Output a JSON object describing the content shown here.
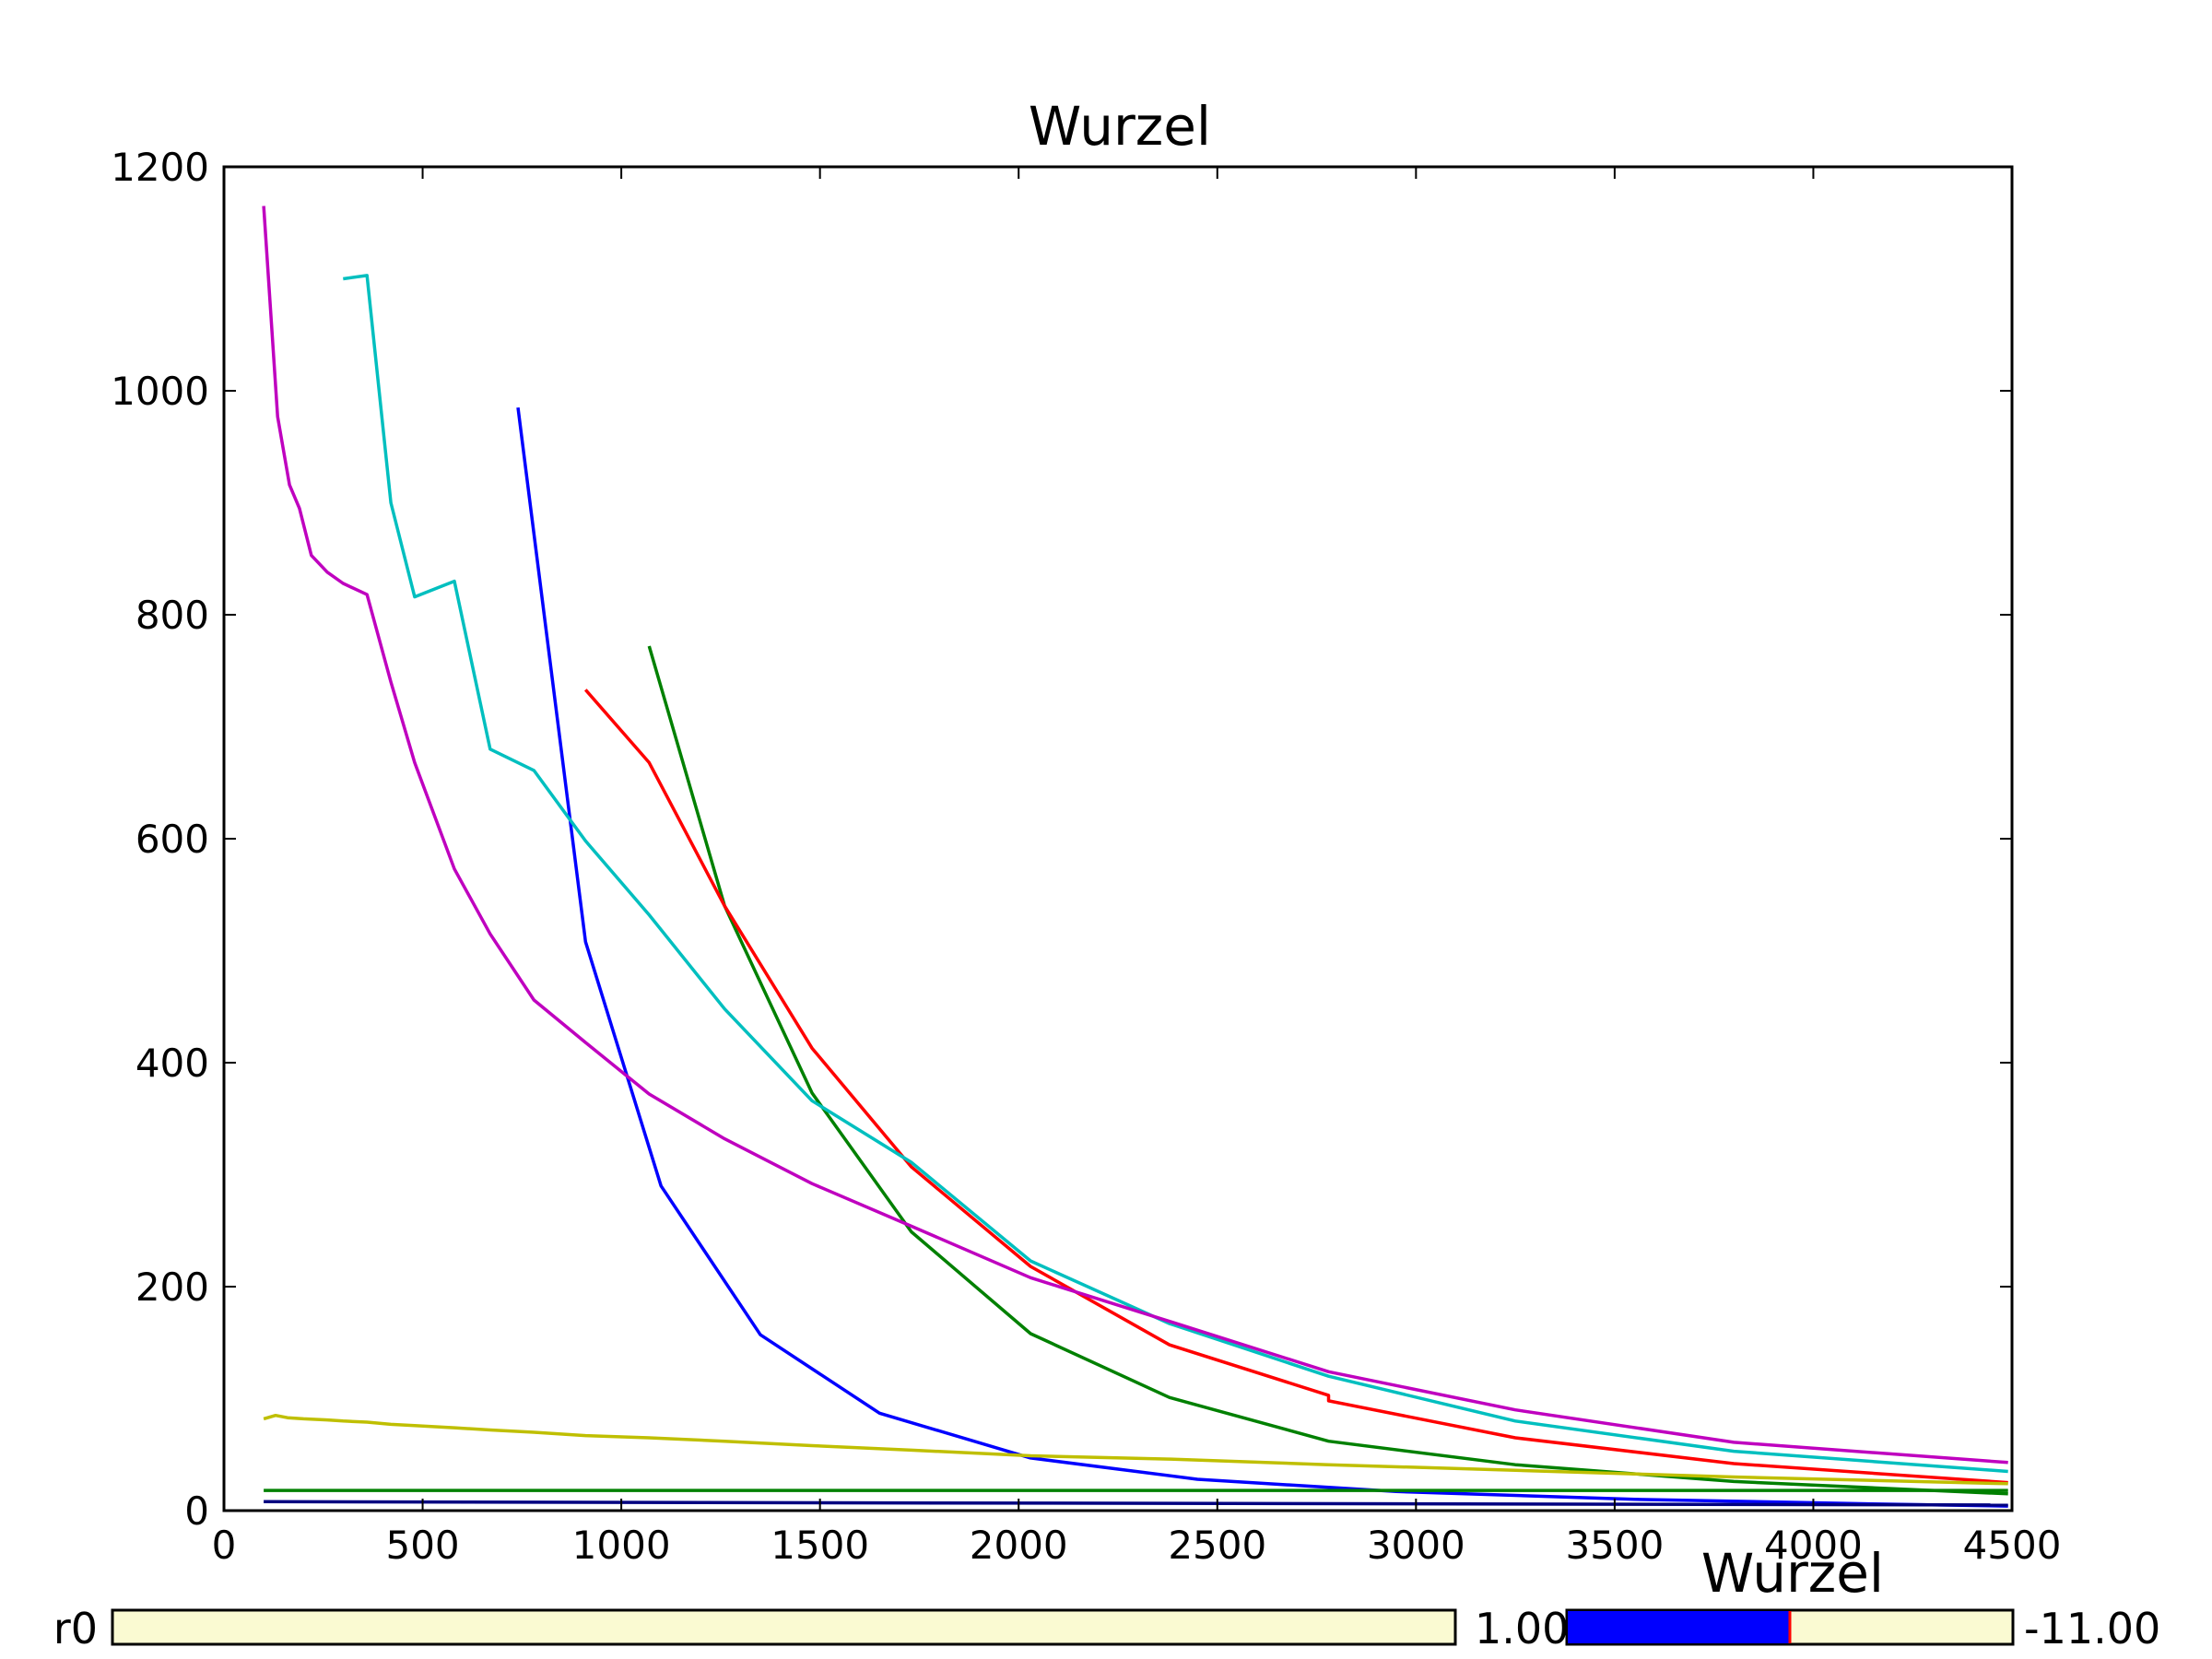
{
  "colors": {
    "blue": "#0000ff",
    "green": "#008000",
    "red": "#ff0000",
    "cyan": "#00bfbf",
    "magenta": "#bf00bf",
    "olive": "#bfbf00",
    "navy": "#000080",
    "slider_track": "#fafad2",
    "slider_fill": "#0000ff",
    "slider_marker": "#ff0000"
  },
  "chart_data": {
    "type": "line",
    "title": "Wurzel",
    "xlabel": "",
    "ylabel": "",
    "xlim": [
      0,
      4500
    ],
    "ylim": [
      0,
      1200
    ],
    "xticks": [
      "0",
      "500",
      "1000",
      "1500",
      "2000",
      "2500",
      "3000",
      "3500",
      "4000",
      "4500"
    ],
    "yticks": [
      "0",
      "200",
      "400",
      "600",
      "800",
      "1000",
      "1200"
    ],
    "xtick_values": [
      0,
      500,
      1000,
      1500,
      2000,
      2500,
      3000,
      3500,
      4000,
      4500
    ],
    "ytick_values": [
      0,
      200,
      400,
      600,
      800,
      1000,
      1200
    ],
    "grid": false,
    "series": [
      {
        "color": "blue",
        "x": [
          740,
          910,
          1100,
          1350,
          1650,
          2030,
          2450,
          2950,
          3550,
          4150,
          4490
        ],
        "y": [
          985,
          508,
          290,
          157,
          87,
          47,
          28,
          17,
          10,
          6,
          4
        ]
      },
      {
        "color": "green",
        "x": [
          1070,
          1260,
          1480,
          1730,
          2030,
          2380,
          2780,
          3250,
          3800,
          4490
        ],
        "y": [
          772,
          540,
          373,
          249,
          158,
          101,
          62,
          41,
          26,
          15
        ]
      },
      {
        "color": "red",
        "x": [
          910,
          1070,
          1260,
          1480,
          1730,
          2030,
          2380,
          2780,
          2780,
          3250,
          3800,
          4490
        ],
        "y": [
          733,
          668,
          540,
          413,
          307,
          218,
          148,
          103,
          98,
          65,
          42,
          25
        ]
      },
      {
        "color": "cyan",
        "x": [
          300,
          360,
          420,
          480,
          580,
          670,
          780,
          910,
          1070,
          1260,
          1480,
          1730,
          2030,
          2380,
          2780,
          3250,
          3800,
          4490
        ],
        "y": [
          1100,
          1103,
          900,
          816,
          830,
          680,
          661,
          598,
          532,
          448,
          366,
          311,
          223,
          167,
          120,
          80,
          53,
          35
        ]
      },
      {
        "color": "magenta",
        "x": [
          100,
          135,
          165,
          190,
          220,
          260,
          300,
          360,
          420,
          480,
          580,
          670,
          780,
          910,
          1070,
          1260,
          1480,
          1730,
          2030,
          2380,
          2780,
          3250,
          3800,
          4490
        ],
        "y": [
          1165,
          977,
          916,
          895,
          853,
          838,
          828,
          818,
          740,
          668,
          573,
          515,
          456,
          418,
          372,
          332,
          292,
          254,
          208,
          169,
          124,
          90,
          61,
          43
        ]
      },
      {
        "color": "olive",
        "x": [
          100,
          130,
          160,
          200,
          260,
          300,
          360,
          420,
          480,
          580,
          670,
          780,
          910,
          1070,
          1260,
          1480,
          1730,
          2030,
          2380,
          2780,
          3250,
          3800,
          4490
        ],
        "y": [
          82,
          85,
          83,
          82,
          81,
          80,
          79,
          77,
          76,
          74,
          72,
          70,
          67,
          65,
          62,
          58,
          54,
          49,
          46,
          41,
          36,
          30,
          24
        ]
      },
      {
        "color": "green",
        "x": [
          100,
          4490
        ],
        "y": [
          18,
          18
        ]
      },
      {
        "color": "navy",
        "x": [
          100,
          4490
        ],
        "y": [
          8,
          5
        ]
      }
    ]
  },
  "sliders": [
    {
      "label": "r0",
      "value_text": "1.00",
      "fraction": 0.0,
      "title": ""
    },
    {
      "label": "",
      "value_text": "-11.00",
      "fraction": 0.5,
      "title": "Wurzel"
    }
  ]
}
